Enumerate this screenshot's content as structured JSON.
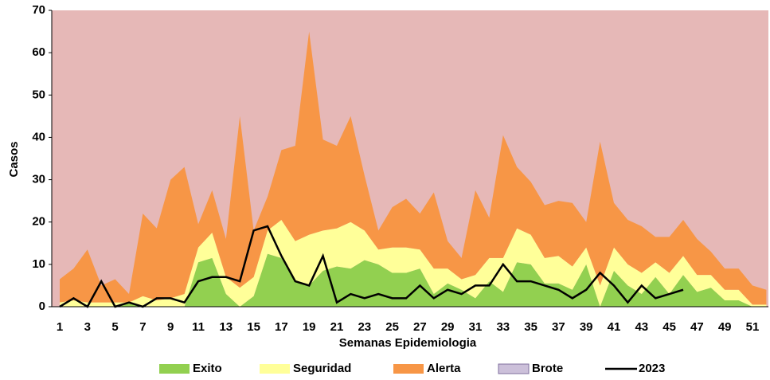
{
  "chart_data": {
    "type": "stacked_area_line",
    "x_label": "Semanas Epidemiologia",
    "y_label": "Casos",
    "categories": [
      1,
      null,
      3,
      null,
      5,
      null,
      7,
      null,
      9,
      null,
      11,
      null,
      13,
      null,
      15,
      null,
      17,
      null,
      19,
      null,
      21,
      null,
      23,
      null,
      25,
      null,
      27,
      null,
      29,
      null,
      31,
      null,
      33,
      null,
      35,
      null,
      37,
      null,
      39,
      null,
      41,
      null,
      43,
      null,
      45,
      null,
      47,
      null,
      49,
      null,
      51,
      null
    ],
    "ylim": [
      0,
      70
    ],
    "yticks": [
      0,
      10,
      20,
      30,
      40,
      50,
      60,
      70
    ],
    "series": [
      {
        "name": "Exito",
        "color": "#92d050",
        "kind": "area",
        "values": [
          0,
          0,
          0,
          0,
          0,
          1,
          0,
          0,
          0,
          0,
          10.5,
          11.5,
          3,
          0,
          2.5,
          12.5,
          11.5,
          6,
          5,
          8.5,
          9.5,
          9,
          11,
          10,
          8,
          8,
          9,
          3,
          5.5,
          4,
          2,
          6,
          3.5,
          10.5,
          10,
          5.5,
          5.5,
          4,
          10,
          0,
          8.5,
          5,
          3,
          7,
          3,
          7.5,
          3.5,
          4.5,
          1.5,
          1.5,
          0,
          0
        ]
      },
      {
        "name": "Seguridad",
        "color": "#ffff99",
        "kind": "area",
        "values": [
          1,
          1.5,
          1,
          1,
          1,
          0,
          2.5,
          1.5,
          2,
          3,
          3.5,
          6,
          4,
          4.5,
          4.5,
          5.5,
          9,
          9.5,
          12,
          9.5,
          9,
          11,
          7,
          3.5,
          6,
          6,
          4.5,
          6,
          3.5,
          2.5,
          5.5,
          5.5,
          8,
          8,
          7,
          6,
          6.5,
          5.5,
          4,
          5,
          5.5,
          5,
          5,
          3.5,
          5,
          4.5,
          4,
          3,
          2.5,
          2.5,
          0.5,
          0.5
        ]
      },
      {
        "name": "Alerta",
        "color": "#f79646",
        "kind": "area",
        "values": [
          5.5,
          7.5,
          12.5,
          4,
          5.5,
          2,
          19.5,
          17,
          28,
          30,
          5.5,
          10,
          9,
          40.5,
          11,
          8,
          16.5,
          22.5,
          48,
          21.5,
          19.5,
          25,
          13,
          4.5,
          9.5,
          11.5,
          8.5,
          18,
          6.5,
          5,
          20,
          9.5,
          29,
          14.5,
          12.5,
          12.5,
          13,
          15,
          6,
          34,
          10.5,
          10.5,
          11,
          6,
          8.5,
          8.5,
          8.5,
          5.5,
          5,
          5,
          4.5,
          3.5
        ]
      },
      {
        "name": "Brote",
        "color": "#e6b8b7",
        "legend_color": "#ccc0da",
        "kind": "fill_to_top"
      },
      {
        "name": "2023",
        "color": "#000000",
        "kind": "line",
        "values": [
          0,
          2,
          0,
          6,
          0,
          1,
          0,
          2,
          2,
          1,
          6,
          7,
          7,
          6,
          18,
          19,
          12,
          6,
          5,
          12,
          1,
          3,
          2,
          3,
          2,
          2,
          5,
          2,
          4,
          3,
          5,
          5,
          10,
          6,
          6,
          5,
          4,
          2,
          4,
          8,
          5,
          1,
          5,
          2,
          3,
          4,
          null,
          null,
          null,
          null,
          null,
          null
        ]
      }
    ]
  }
}
